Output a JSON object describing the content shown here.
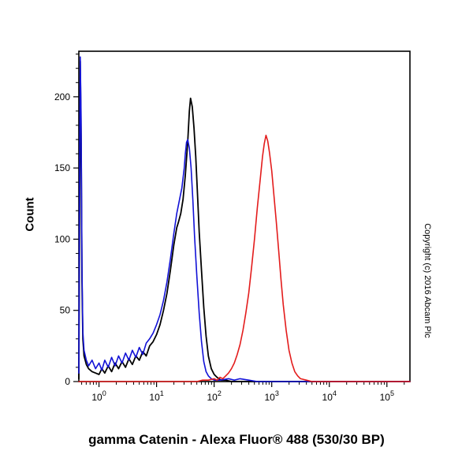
{
  "title": "gamma Catenin - Alexa Fluor® 488 (530/30 BP)",
  "watermark": "Copyright (c) 2016 Abcam Plc",
  "chart_data": {
    "type": "line",
    "subtype": "flow-cytometry-histogram",
    "title": "gamma Catenin - Alexa Fluor® 488 (530/30 BP)",
    "xlabel": "gamma Catenin - Alexa Fluor® 488 (530/30 BP)",
    "ylabel": "Count",
    "xscale": "log10",
    "xtick_base": "10",
    "xtick_exponents": [
      0,
      1,
      2,
      3,
      4,
      5
    ],
    "xlim_log10": [
      -0.35,
      5.4
    ],
    "ylim": [
      0,
      232
    ],
    "yticks": [
      0,
      50,
      100,
      150,
      200
    ],
    "ytick_minor_step": 10,
    "grid": false,
    "legend": "none",
    "background": "#ffffff",
    "series": [
      {
        "name": "unstained-control-black",
        "color": "#000000",
        "stroke_width": 1.8,
        "points": [
          [
            -0.35,
            2
          ],
          [
            -0.34,
            80
          ],
          [
            -0.325,
            225
          ],
          [
            -0.31,
            170
          ],
          [
            -0.295,
            70
          ],
          [
            -0.28,
            30
          ],
          [
            -0.26,
            18
          ],
          [
            -0.22,
            12
          ],
          [
            -0.18,
            9
          ],
          [
            -0.12,
            7
          ],
          [
            -0.06,
            6
          ],
          [
            0.0,
            5
          ],
          [
            0.05,
            9
          ],
          [
            0.1,
            6
          ],
          [
            0.16,
            11
          ],
          [
            0.22,
            7
          ],
          [
            0.28,
            13
          ],
          [
            0.34,
            9
          ],
          [
            0.4,
            14
          ],
          [
            0.46,
            10
          ],
          [
            0.52,
            16
          ],
          [
            0.58,
            12
          ],
          [
            0.64,
            18
          ],
          [
            0.7,
            15
          ],
          [
            0.76,
            21
          ],
          [
            0.82,
            18
          ],
          [
            0.88,
            25
          ],
          [
            0.94,
            28
          ],
          [
            1.0,
            33
          ],
          [
            1.06,
            40
          ],
          [
            1.12,
            50
          ],
          [
            1.18,
            62
          ],
          [
            1.24,
            78
          ],
          [
            1.3,
            96
          ],
          [
            1.35,
            108
          ],
          [
            1.38,
            112
          ],
          [
            1.42,
            118
          ],
          [
            1.46,
            128
          ],
          [
            1.5,
            145
          ],
          [
            1.54,
            168
          ],
          [
            1.57,
            190
          ],
          [
            1.59,
            199
          ],
          [
            1.62,
            193
          ],
          [
            1.65,
            178
          ],
          [
            1.68,
            158
          ],
          [
            1.71,
            132
          ],
          [
            1.74,
            105
          ],
          [
            1.78,
            78
          ],
          [
            1.82,
            52
          ],
          [
            1.86,
            32
          ],
          [
            1.9,
            18
          ],
          [
            1.95,
            9
          ],
          [
            2.0,
            5
          ],
          [
            2.05,
            3
          ],
          [
            2.12,
            1
          ],
          [
            2.2,
            1
          ],
          [
            2.3,
            0
          ],
          [
            5.4,
            0
          ]
        ]
      },
      {
        "name": "isotype-control-blue",
        "color": "#1212d6",
        "stroke_width": 1.6,
        "points": [
          [
            -0.35,
            6
          ],
          [
            -0.34,
            120
          ],
          [
            -0.325,
            228
          ],
          [
            -0.31,
            185
          ],
          [
            -0.295,
            80
          ],
          [
            -0.28,
            35
          ],
          [
            -0.26,
            22
          ],
          [
            -0.22,
            15
          ],
          [
            -0.18,
            11
          ],
          [
            -0.12,
            15
          ],
          [
            -0.06,
            9
          ],
          [
            0.0,
            13
          ],
          [
            0.05,
            8
          ],
          [
            0.1,
            15
          ],
          [
            0.16,
            10
          ],
          [
            0.22,
            17
          ],
          [
            0.28,
            11
          ],
          [
            0.34,
            18
          ],
          [
            0.4,
            13
          ],
          [
            0.46,
            20
          ],
          [
            0.52,
            15
          ],
          [
            0.58,
            22
          ],
          [
            0.64,
            17
          ],
          [
            0.7,
            24
          ],
          [
            0.76,
            19
          ],
          [
            0.82,
            27
          ],
          [
            0.88,
            30
          ],
          [
            0.94,
            34
          ],
          [
            1.0,
            40
          ],
          [
            1.06,
            47
          ],
          [
            1.12,
            57
          ],
          [
            1.18,
            70
          ],
          [
            1.24,
            86
          ],
          [
            1.3,
            104
          ],
          [
            1.35,
            118
          ],
          [
            1.4,
            128
          ],
          [
            1.44,
            136
          ],
          [
            1.48,
            150
          ],
          [
            1.5,
            160
          ],
          [
            1.52,
            168
          ],
          [
            1.54,
            170
          ],
          [
            1.57,
            164
          ],
          [
            1.6,
            150
          ],
          [
            1.63,
            128
          ],
          [
            1.66,
            102
          ],
          [
            1.7,
            74
          ],
          [
            1.74,
            48
          ],
          [
            1.78,
            28
          ],
          [
            1.82,
            14
          ],
          [
            1.86,
            7
          ],
          [
            1.9,
            4
          ],
          [
            1.95,
            2
          ],
          [
            2.0,
            1
          ],
          [
            2.1,
            1
          ],
          [
            2.25,
            2
          ],
          [
            2.35,
            1
          ],
          [
            2.45,
            2
          ],
          [
            2.6,
            1
          ],
          [
            2.75,
            0
          ],
          [
            5.4,
            0
          ]
        ]
      },
      {
        "name": "gamma-catenin-stained-red",
        "color": "#e31c1c",
        "stroke_width": 1.6,
        "points": [
          [
            -0.35,
            0
          ],
          [
            1.7,
            0
          ],
          [
            1.8,
            1
          ],
          [
            1.9,
            1
          ],
          [
            2.0,
            2
          ],
          [
            2.05,
            1
          ],
          [
            2.1,
            3
          ],
          [
            2.15,
            2
          ],
          [
            2.2,
            4
          ],
          [
            2.25,
            6
          ],
          [
            2.3,
            9
          ],
          [
            2.35,
            13
          ],
          [
            2.4,
            19
          ],
          [
            2.45,
            26
          ],
          [
            2.5,
            36
          ],
          [
            2.55,
            48
          ],
          [
            2.6,
            62
          ],
          [
            2.65,
            80
          ],
          [
            2.7,
            100
          ],
          [
            2.75,
            122
          ],
          [
            2.8,
            142
          ],
          [
            2.84,
            158
          ],
          [
            2.87,
            167
          ],
          [
            2.9,
            173
          ],
          [
            2.93,
            169
          ],
          [
            2.96,
            161
          ],
          [
            3.0,
            148
          ],
          [
            3.04,
            130
          ],
          [
            3.08,
            112
          ],
          [
            3.12,
            92
          ],
          [
            3.16,
            72
          ],
          [
            3.2,
            54
          ],
          [
            3.25,
            36
          ],
          [
            3.3,
            22
          ],
          [
            3.35,
            13
          ],
          [
            3.4,
            7
          ],
          [
            3.45,
            4
          ],
          [
            3.5,
            2
          ],
          [
            3.6,
            1
          ],
          [
            3.7,
            0
          ],
          [
            5.4,
            0
          ]
        ]
      }
    ]
  }
}
